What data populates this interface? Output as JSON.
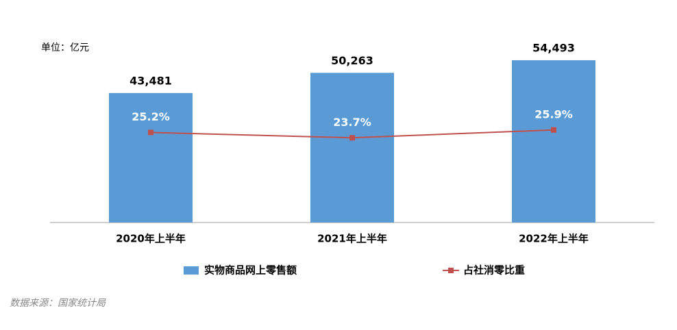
{
  "chart_data": {
    "type": "bar",
    "unit_label": "单位：亿元",
    "source": "数据来源：国家统计局",
    "categories": [
      "2020年上半年",
      "2021年上半年",
      "2022年上半年"
    ],
    "series": [
      {
        "name": "实物商品网上零售额",
        "type": "bar",
        "color": "#5b9bd5",
        "values": [
          43481,
          50263,
          54493
        ],
        "value_labels": [
          "43,481",
          "50,263",
          "54,493"
        ]
      },
      {
        "name": "占社消零比重",
        "type": "line",
        "axis": "y2",
        "color": "#c0504d",
        "values": [
          25.2,
          23.7,
          25.9
        ],
        "value_labels": [
          "25.2%",
          "23.7%",
          "25.9%"
        ]
      }
    ],
    "ylim": [
      0,
      60000
    ],
    "y2lim": [
      0,
      50
    ],
    "legend": "bottom"
  }
}
